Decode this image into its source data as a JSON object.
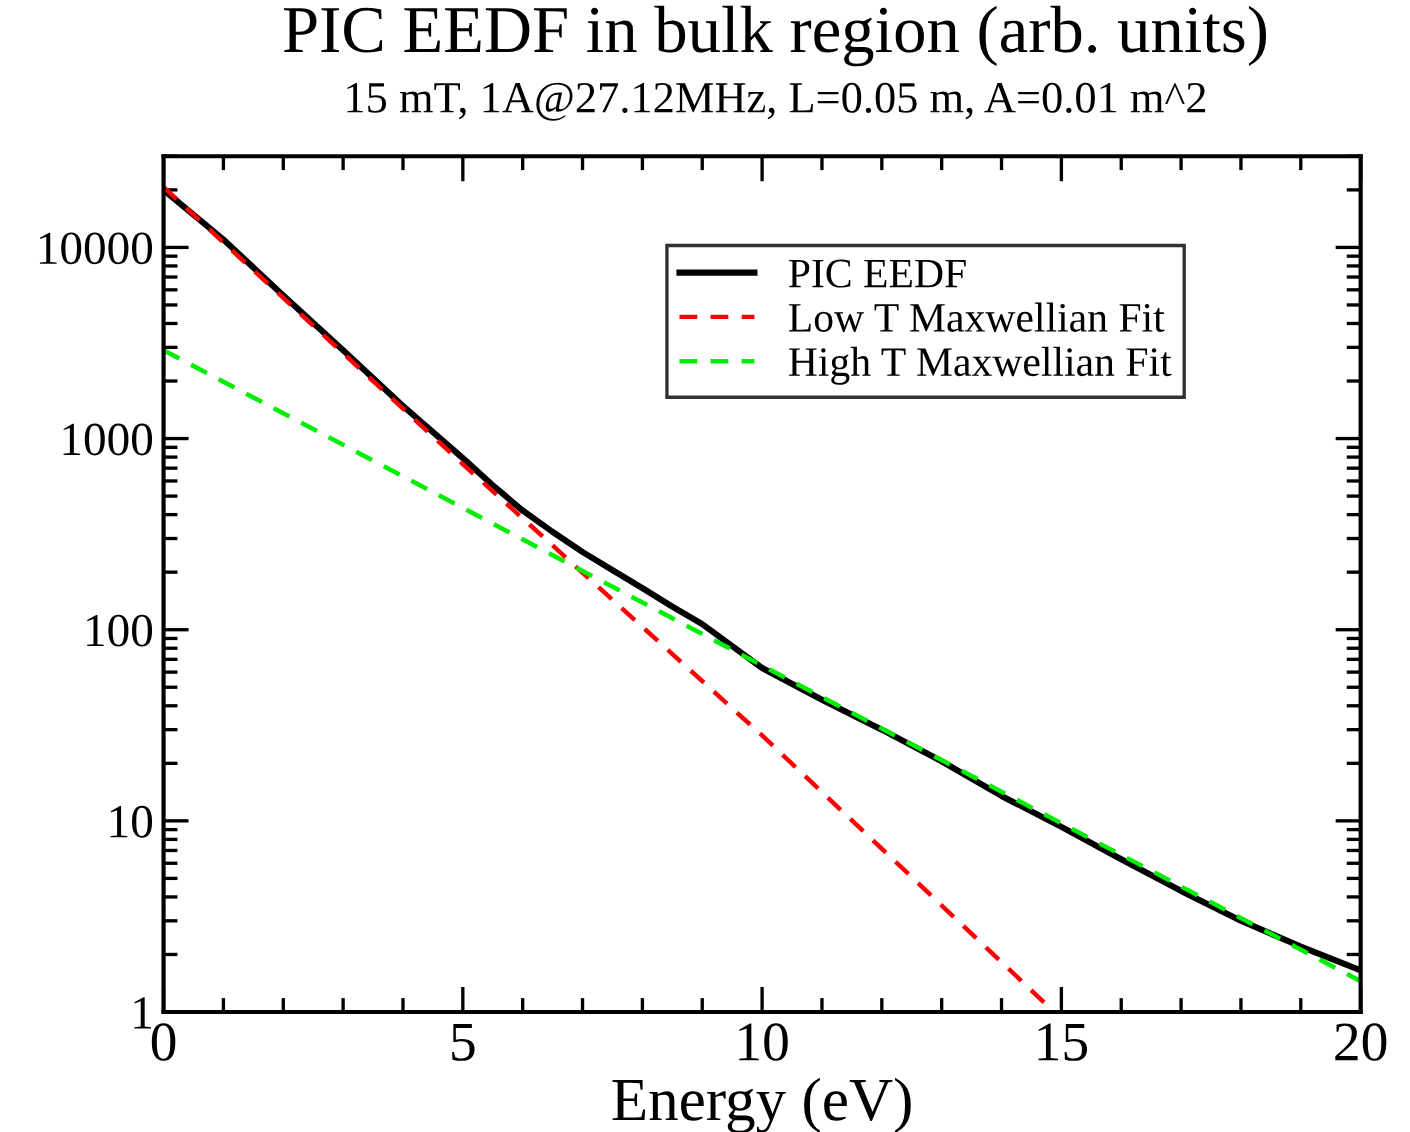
{
  "chart_data": {
    "type": "line",
    "title": "PIC EEDF in bulk region (arb. units)",
    "subtitle": "15 mT, 1A@27.12MHz, L=0.05 m, A=0.01 m^2",
    "xlabel": "Energy (eV)",
    "xlim": [
      0,
      20
    ],
    "xticks": [
      0,
      5,
      10,
      15,
      20
    ],
    "ylim": [
      1,
      30000
    ],
    "yticks": [
      1,
      10,
      100,
      1000,
      10000
    ],
    "log": "y",
    "grid": false,
    "legend": "top right",
    "marker": "none",
    "series": [
      {
        "name": "PIC EEDF",
        "color": "#000000",
        "line_style": "solid",
        "x": [
          0,
          1,
          2,
          3,
          4,
          5,
          5.5,
          6,
          6.5,
          7,
          7.5,
          8,
          8.5,
          9,
          10,
          11,
          12,
          13,
          14,
          15,
          16,
          17,
          18,
          19,
          20
        ],
        "values": [
          20000,
          11000,
          5600,
          2900,
          1480,
          790,
          570,
          420,
          325,
          255,
          205,
          165,
          132,
          107,
          63,
          43,
          30,
          20.5,
          13.5,
          9.3,
          6.3,
          4.3,
          3.0,
          2.2,
          1.65
        ]
      },
      {
        "name": "Low T Maxwellian Fit",
        "color": "#ff0000",
        "line_style": "dashed",
        "x": [
          0,
          5,
          10,
          14.88
        ],
        "values": [
          20700,
          735,
          28,
          1
        ]
      },
      {
        "name": "High T Maxwellian Fit",
        "color": "#00ee00",
        "line_style": "dashed",
        "x": [
          0,
          10,
          20
        ],
        "values": [
          2900,
          65,
          1.45
        ]
      }
    ]
  }
}
